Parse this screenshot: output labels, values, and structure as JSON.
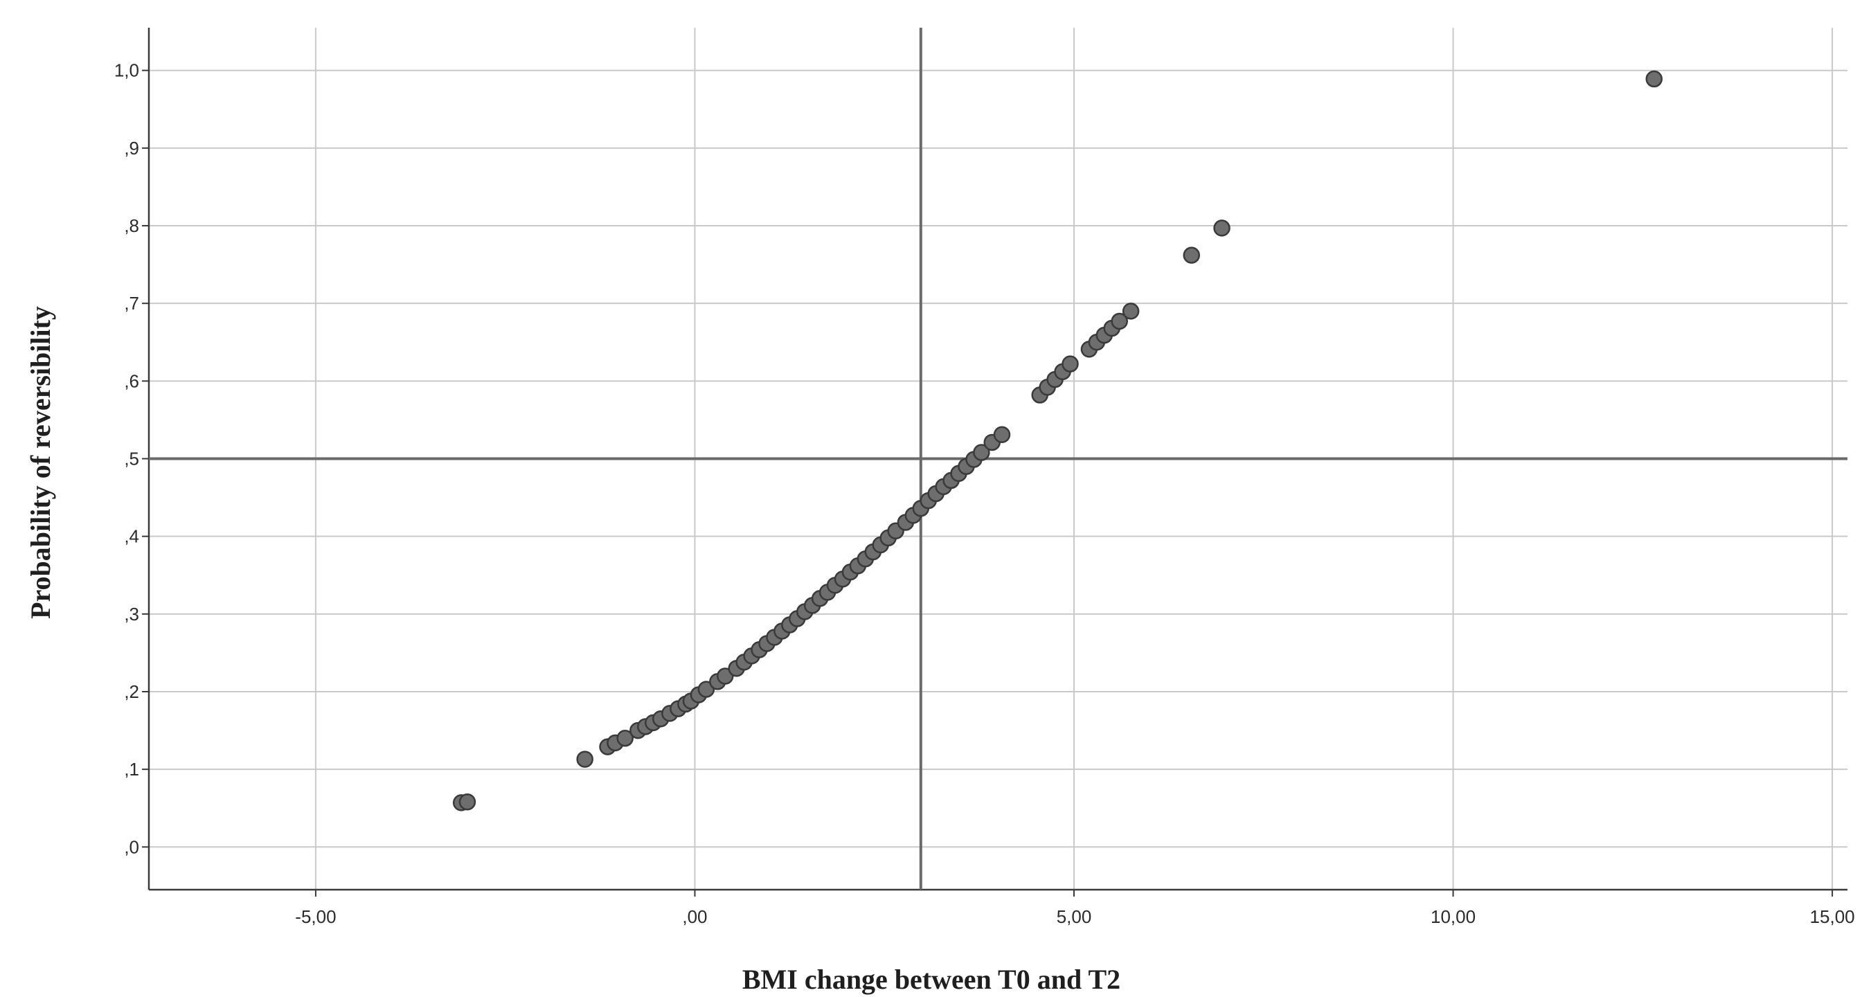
{
  "chart_data": {
    "type": "scatter",
    "title": "",
    "xlabel": "BMI change between T0 and T2",
    "ylabel": "Probability of reversibility",
    "xlim": [
      -7.2,
      15.2
    ],
    "ylim": [
      -0.055,
      1.055
    ],
    "x_ticks": [
      -5,
      0,
      5,
      10,
      15
    ],
    "x_tick_labels": [
      "-5,00",
      ",00",
      "5,00",
      "10,00",
      "15,00"
    ],
    "y_ticks": [
      0,
      0.1,
      0.2,
      0.3,
      0.4,
      0.5,
      0.6,
      0.7,
      0.8,
      0.9,
      1.0
    ],
    "y_tick_labels": [
      ",0",
      ",1",
      ",2",
      ",3",
      ",4",
      ",5",
      ",6",
      ",7",
      ",8",
      ",9",
      "1,0"
    ],
    "grid": true,
    "reference_lines": {
      "x": 2.98,
      "y": 0.5
    },
    "series": [
      {
        "marker_color": "#6e6e6e",
        "edge_color": "#3a3a3a",
        "points": [
          [
            -3.08,
            0.057
          ],
          [
            -3.0,
            0.058
          ],
          [
            -1.45,
            0.113
          ],
          [
            -1.15,
            0.129
          ],
          [
            -1.05,
            0.134
          ],
          [
            -0.92,
            0.14
          ],
          [
            -0.75,
            0.15
          ],
          [
            -0.65,
            0.155
          ],
          [
            -0.55,
            0.16
          ],
          [
            -0.45,
            0.165
          ],
          [
            -0.33,
            0.172
          ],
          [
            -0.22,
            0.178
          ],
          [
            -0.12,
            0.184
          ],
          [
            -0.05,
            0.188
          ],
          [
            0.05,
            0.196
          ],
          [
            0.15,
            0.203
          ],
          [
            0.3,
            0.213
          ],
          [
            0.4,
            0.22
          ],
          [
            0.55,
            0.23
          ],
          [
            0.65,
            0.238
          ],
          [
            0.75,
            0.246
          ],
          [
            0.85,
            0.254
          ],
          [
            0.95,
            0.262
          ],
          [
            1.05,
            0.27
          ],
          [
            1.15,
            0.278
          ],
          [
            1.25,
            0.286
          ],
          [
            1.35,
            0.294
          ],
          [
            1.45,
            0.303
          ],
          [
            1.55,
            0.311
          ],
          [
            1.65,
            0.32
          ],
          [
            1.75,
            0.328
          ],
          [
            1.85,
            0.337
          ],
          [
            1.95,
            0.345
          ],
          [
            2.05,
            0.354
          ],
          [
            2.15,
            0.362
          ],
          [
            2.25,
            0.371
          ],
          [
            2.35,
            0.38
          ],
          [
            2.45,
            0.389
          ],
          [
            2.55,
            0.398
          ],
          [
            2.65,
            0.407
          ],
          [
            2.78,
            0.418
          ],
          [
            2.88,
            0.427
          ],
          [
            2.98,
            0.436
          ],
          [
            3.08,
            0.446
          ],
          [
            3.18,
            0.455
          ],
          [
            3.28,
            0.464
          ],
          [
            3.38,
            0.472
          ],
          [
            3.48,
            0.481
          ],
          [
            3.58,
            0.49
          ],
          [
            3.68,
            0.499
          ],
          [
            3.78,
            0.508
          ],
          [
            3.92,
            0.521
          ],
          [
            4.05,
            0.531
          ],
          [
            4.55,
            0.582
          ],
          [
            4.65,
            0.592
          ],
          [
            4.75,
            0.602
          ],
          [
            4.85,
            0.612
          ],
          [
            4.95,
            0.622
          ],
          [
            5.2,
            0.641
          ],
          [
            5.3,
            0.65
          ],
          [
            5.4,
            0.659
          ],
          [
            5.5,
            0.668
          ],
          [
            5.6,
            0.677
          ],
          [
            5.75,
            0.69
          ],
          [
            6.55,
            0.762
          ],
          [
            6.95,
            0.797
          ],
          [
            12.65,
            0.989
          ]
        ]
      }
    ]
  }
}
